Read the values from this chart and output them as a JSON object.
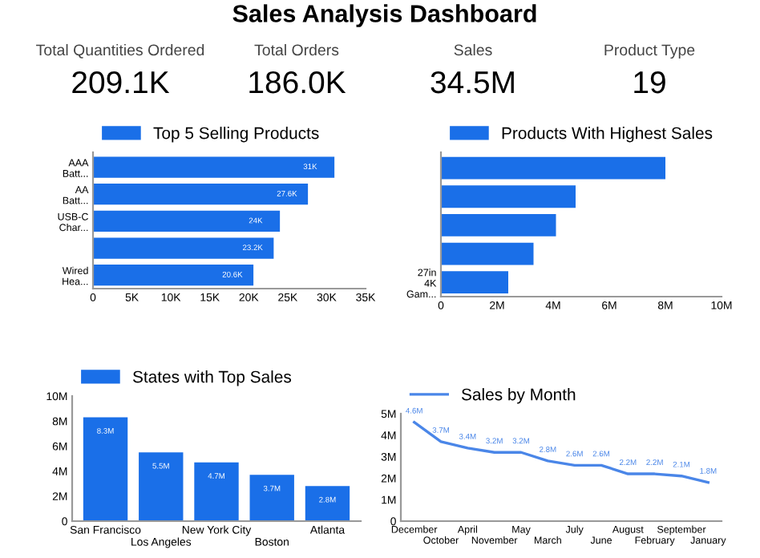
{
  "chart_data": [
    {
      "type": "other",
      "title": "Sales Analysis Dashboard",
      "annotations": [
        "Total Quantities Ordered",
        "209.1K",
        "Total Orders",
        "186.0K",
        "Sales",
        "34.5M",
        "Product Type",
        "19"
      ]
    },
    {
      "type": "bar",
      "orientation": "horizontal",
      "categories": [
        "AAA\nBatt...",
        "AA\nBatt...",
        "USB-C\nChar...",
        null,
        "Wired\nHea..."
      ],
      "series": [
        {
          "name": "Top 5 Selling Products",
          "color": "#1a6fe8",
          "values": [
            31000,
            27600,
            24000,
            23200,
            20600
          ],
          "value_labels": [
            "31K",
            "27.6K",
            "24K",
            "23.2K",
            "20.6K"
          ]
        }
      ],
      "xlim": [
        0,
        35000
      ],
      "xticks": [
        0,
        {
          "value": 5000,
          "label": "5K"
        },
        {
          "value": 10000,
          "label": "10K"
        },
        {
          "value": 15000,
          "label": "15K"
        },
        {
          "value": 20000,
          "label": "20K"
        },
        {
          "value": 25000,
          "label": "25K"
        },
        {
          "value": 30000,
          "label": "30K"
        },
        {
          "value": 35000,
          "label": "35K"
        }
      ],
      "legend": "top",
      "grid": false
    },
    {
      "type": "bar",
      "orientation": "horizontal",
      "categories": [
        null,
        null,
        null,
        null,
        "27in\n4K\nGam..."
      ],
      "series": [
        {
          "name": "Products With Highest Sales",
          "color": "#1a6fe8",
          "values": [
            8000000,
            4800000,
            4100000,
            3300000,
            2400000
          ]
        }
      ],
      "xlim": [
        0,
        10000000
      ],
      "xticks": [
        0,
        {
          "value": 2000000,
          "label": "2M"
        },
        {
          "value": 4000000,
          "label": "4M"
        },
        {
          "value": 6000000,
          "label": "6M"
        },
        {
          "value": 8000000,
          "label": "8M"
        },
        {
          "value": 10000000,
          "label": "10M"
        }
      ],
      "legend": "top",
      "grid": false
    },
    {
      "type": "bar",
      "categories": [
        "San Francisco",
        "Los Angeles",
        "New York City",
        "Boston",
        "Atlanta"
      ],
      "series": [
        {
          "name": "States with Top Sales",
          "color": "#1a6fe8",
          "values": [
            8300000,
            5500000,
            4700000,
            3700000,
            2800000
          ],
          "value_labels": [
            "8.3M",
            "5.5M",
            "4.7M",
            "3.7M",
            "2.8M"
          ]
        }
      ],
      "ylim": [
        0,
        10000000
      ],
      "yticks": [
        0,
        {
          "value": 2000000,
          "label": "2M"
        },
        {
          "value": 4000000,
          "label": "4M"
        },
        {
          "value": 6000000,
          "label": "6M"
        },
        {
          "value": 8000000,
          "label": "8M"
        },
        {
          "value": 10000000,
          "label": "10M"
        }
      ],
      "legend": "top",
      "grid": false
    },
    {
      "type": "line",
      "categories": [
        "December",
        "October",
        "April",
        "November",
        "May",
        "March",
        "July",
        "June",
        "August",
        "February",
        "September",
        "January"
      ],
      "series": [
        {
          "name": "Sales by Month",
          "color": "#4a86e8",
          "values": [
            4600000,
            3700000,
            3400000,
            3200000,
            3200000,
            2800000,
            2600000,
            2600000,
            2200000,
            2200000,
            2100000,
            1800000
          ],
          "value_labels": [
            "4.6M",
            "3.7M",
            "3.4M",
            "3.2M",
            "3.2M",
            "2.8M",
            "2.6M",
            "2.6M",
            "2.2M",
            "2.2M",
            "2.1M",
            "1.8M"
          ]
        }
      ],
      "ylim": [
        0,
        5000000
      ],
      "yticks": [
        0,
        {
          "value": 1000000,
          "label": "1M"
        },
        {
          "value": 2000000,
          "label": "2M"
        },
        {
          "value": 3000000,
          "label": "3M"
        },
        {
          "value": 4000000,
          "label": "4M"
        },
        {
          "value": 5000000,
          "label": "5M"
        }
      ],
      "legend": "top",
      "grid": false,
      "marker": "none",
      "line_style": "solid"
    }
  ]
}
